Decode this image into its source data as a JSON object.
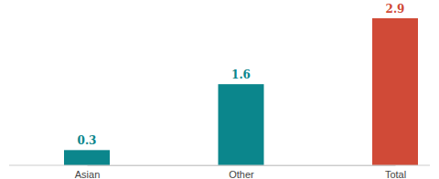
{
  "chart_data": {
    "type": "bar",
    "categories": [
      "Asian",
      "Other",
      "Total"
    ],
    "values": [
      0.3,
      1.6,
      2.9
    ],
    "colors": [
      "#0b868c",
      "#0b868c",
      "#d04a37"
    ],
    "data_labels": true,
    "tick_labels": "x",
    "grid": false
  }
}
